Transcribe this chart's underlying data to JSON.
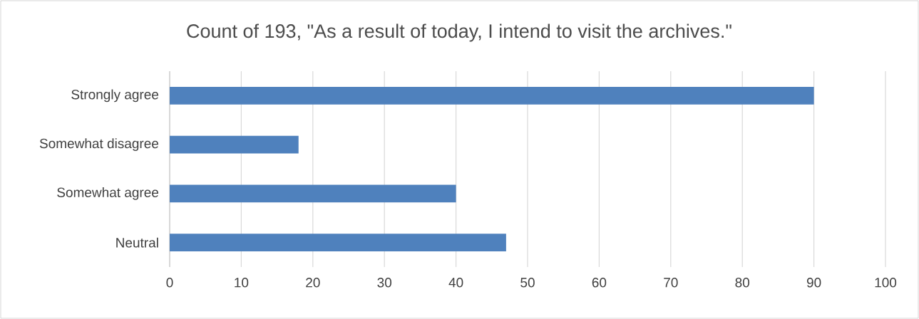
{
  "chart_data": {
    "type": "bar",
    "orientation": "horizontal",
    "title": "Count of 193, \"As a result of today, I intend to visit the archives.\"",
    "categories": [
      "Strongly agree",
      "Somewhat disagree",
      "Somewhat agree",
      "Neutral"
    ],
    "values": [
      90,
      18,
      40,
      47
    ],
    "color": "#4f81bd",
    "xlim": [
      0,
      100
    ],
    "xticks": [
      0,
      10,
      20,
      30,
      40,
      50,
      60,
      70,
      80,
      90,
      100
    ],
    "grid": "x"
  }
}
